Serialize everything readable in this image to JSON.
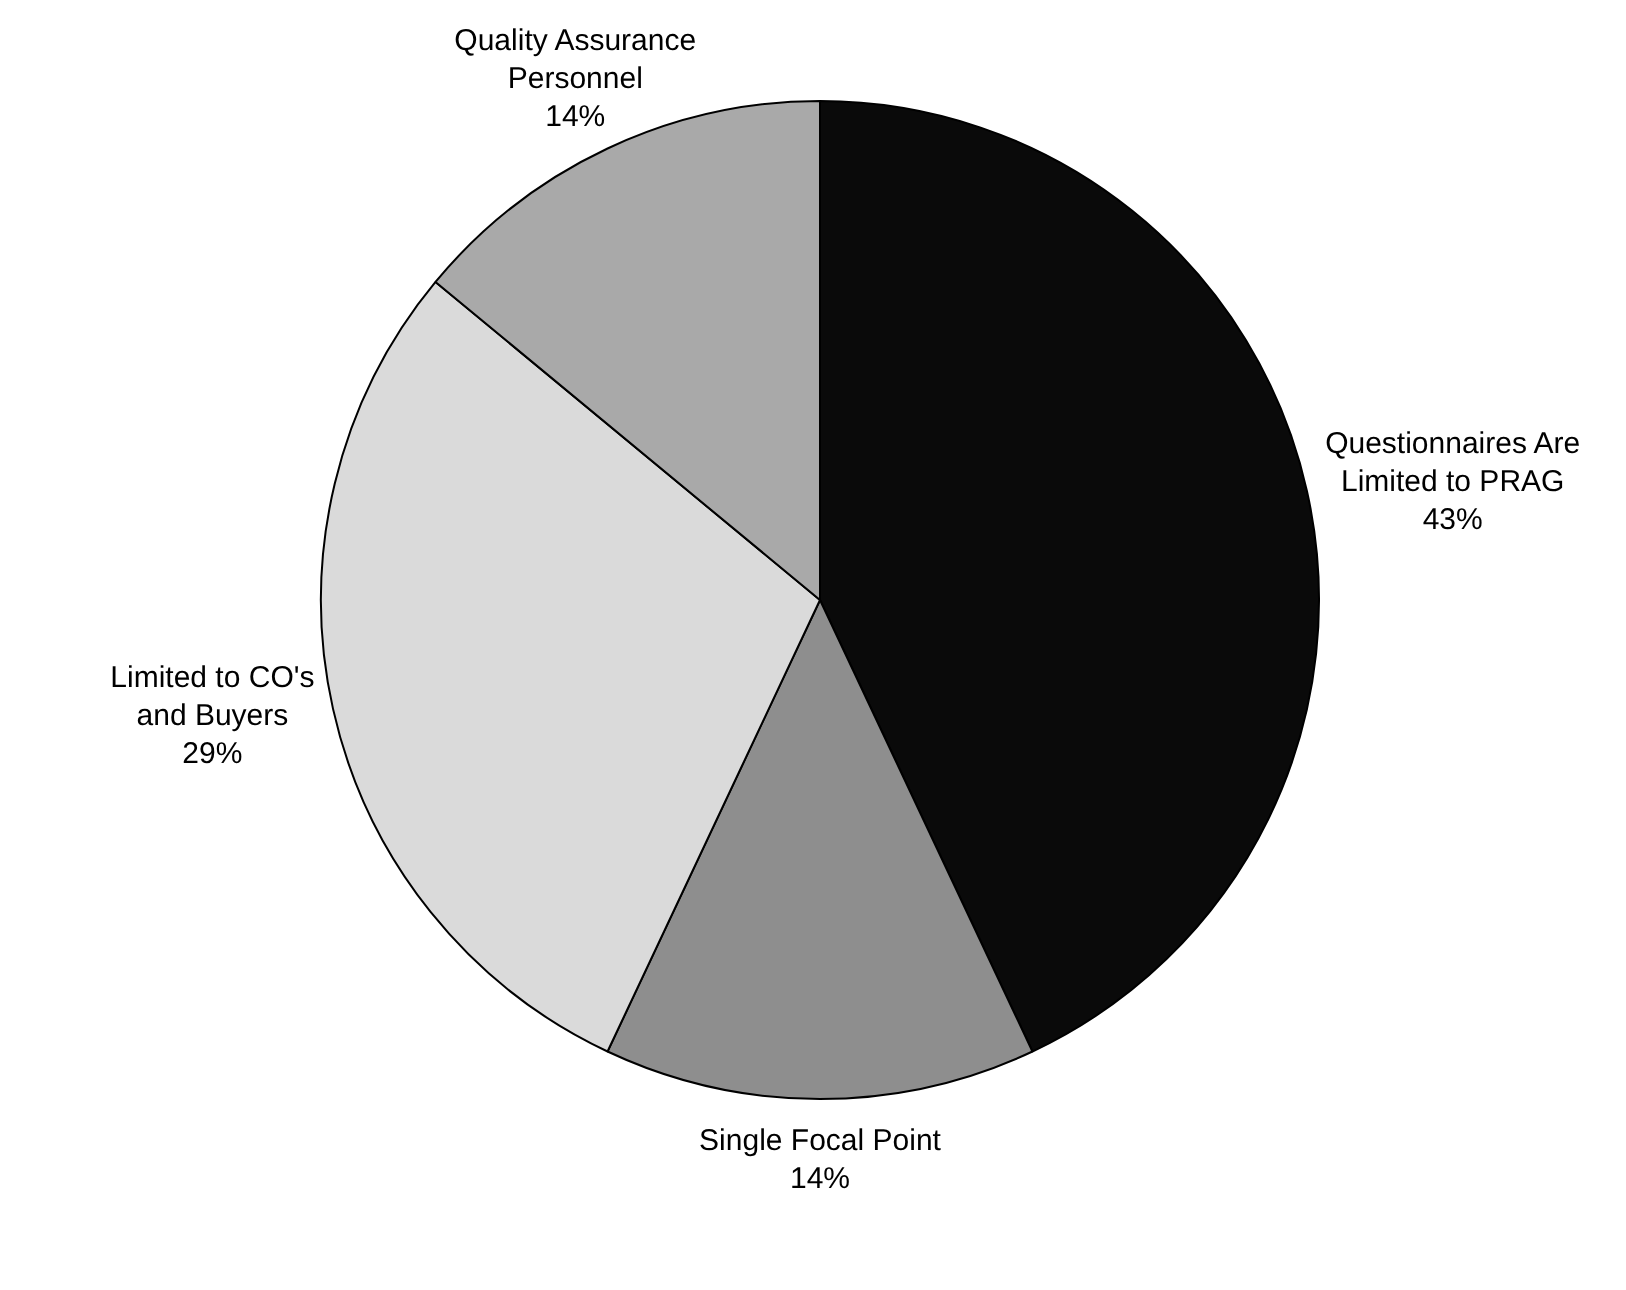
{
  "chart_data": {
    "type": "pie",
    "categories": [
      "Questionnaires Are Limited to PRAG",
      "Single Focal Point",
      "Limited to CO's and Buyers",
      "Quality Assurance Personnel"
    ],
    "values": [
      43,
      14,
      29,
      14
    ],
    "colors": [
      "#0a0a0a",
      "#8e8e8e",
      "#dadada",
      "#a9a9a9"
    ],
    "value_labels": [
      "43%",
      "14%",
      "29%",
      "14%"
    ],
    "legend": false
  }
}
